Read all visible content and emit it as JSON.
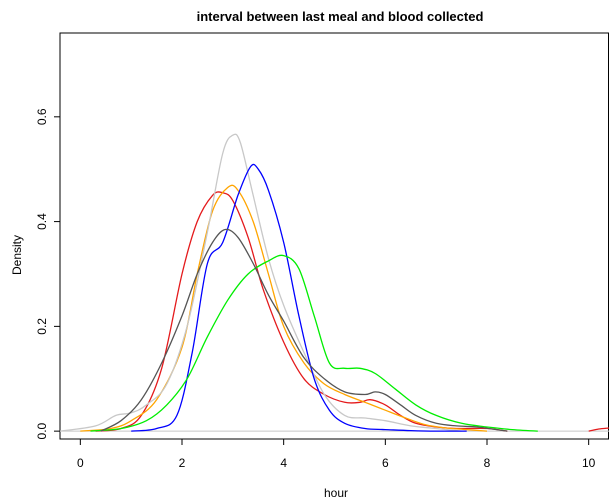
{
  "chart_data": {
    "type": "line",
    "title": "interval between last meal and blood collected",
    "xlabel": "hour",
    "ylabel": "Density",
    "xlim": [
      -0.4,
      10.4
    ],
    "ylim": [
      -0.015,
      0.76
    ],
    "x_ticks": [
      0,
      2,
      4,
      6,
      8,
      10
    ],
    "x_tick_labels": [
      "0",
      "2",
      "4",
      "6",
      "8",
      "10"
    ],
    "y_ticks": [
      0.0,
      0.2,
      0.4,
      0.6
    ],
    "y_tick_labels": [
      "0.0",
      "0.2",
      "0.4",
      "0.6"
    ],
    "grid": false,
    "legend": "none",
    "baseline": 0,
    "baseline_color": "#c8c8c8",
    "series": [
      {
        "color": "#e41a1c",
        "x": [
          0.3,
          0.8,
          1.2,
          1.6,
          2.0,
          2.3,
          2.6,
          2.8,
          3.0,
          3.3,
          3.6,
          4.0,
          4.4,
          4.8,
          5.2,
          5.5,
          5.7,
          6.0,
          6.3,
          6.6,
          7.0,
          7.4,
          8.0,
          8.4
        ],
        "y": [
          0.0,
          0.005,
          0.03,
          0.12,
          0.3,
          0.4,
          0.45,
          0.455,
          0.44,
          0.37,
          0.27,
          0.17,
          0.1,
          0.07,
          0.055,
          0.055,
          0.06,
          0.05,
          0.03,
          0.015,
          0.008,
          0.005,
          0.005,
          0.0
        ]
      },
      {
        "color": "#ffa500",
        "x": [
          0.0,
          0.6,
          1.0,
          1.5,
          2.0,
          2.3,
          2.6,
          2.9,
          3.1,
          3.4,
          3.7,
          4.0,
          4.4,
          4.8,
          5.2,
          5.6,
          6.0,
          6.4,
          6.8,
          7.2,
          7.6,
          8.0
        ],
        "y": [
          0.0,
          0.005,
          0.02,
          0.06,
          0.16,
          0.3,
          0.42,
          0.465,
          0.46,
          0.4,
          0.3,
          0.2,
          0.13,
          0.09,
          0.07,
          0.055,
          0.04,
          0.025,
          0.012,
          0.006,
          0.003,
          0.0
        ]
      },
      {
        "color": "#c8c8c8",
        "x": [
          -0.4,
          0.3,
          0.7,
          1.0,
          1.3,
          1.7,
          2.1,
          2.5,
          2.8,
          3.0,
          3.15,
          3.4,
          3.7,
          4.0,
          4.4,
          4.8,
          5.2,
          5.6,
          6.0,
          6.5,
          7.0,
          7.5
        ],
        "y": [
          0.0,
          0.01,
          0.03,
          0.035,
          0.05,
          0.09,
          0.2,
          0.38,
          0.53,
          0.565,
          0.55,
          0.45,
          0.33,
          0.24,
          0.15,
          0.07,
          0.03,
          0.025,
          0.02,
          0.01,
          0.005,
          0.0
        ]
      },
      {
        "color": "#0000ff",
        "x": [
          1.0,
          1.5,
          1.9,
          2.2,
          2.5,
          2.8,
          3.1,
          3.35,
          3.5,
          3.7,
          4.0,
          4.3,
          4.6,
          4.9,
          5.2,
          5.6,
          6.0,
          6.5,
          7.0,
          7.6
        ],
        "y": [
          0.0,
          0.005,
          0.03,
          0.15,
          0.32,
          0.36,
          0.45,
          0.505,
          0.5,
          0.46,
          0.36,
          0.22,
          0.1,
          0.04,
          0.015,
          0.005,
          0.003,
          0.001,
          0.0,
          0.0
        ]
      },
      {
        "color": "#00ee00",
        "x": [
          0.2,
          0.8,
          1.3,
          1.7,
          2.1,
          2.5,
          2.9,
          3.3,
          3.7,
          4.0,
          4.3,
          4.6,
          4.9,
          5.2,
          5.5,
          5.8,
          6.2,
          6.6,
          7.0,
          7.5,
          8.0,
          8.5,
          9.0
        ],
        "y": [
          0.0,
          0.005,
          0.02,
          0.05,
          0.1,
          0.18,
          0.25,
          0.3,
          0.325,
          0.335,
          0.31,
          0.22,
          0.13,
          0.12,
          0.12,
          0.11,
          0.08,
          0.05,
          0.03,
          0.015,
          0.008,
          0.003,
          0.0
        ]
      },
      {
        "color": "#555555",
        "x": [
          0.4,
          0.8,
          1.2,
          1.6,
          2.0,
          2.3,
          2.6,
          2.85,
          3.1,
          3.4,
          3.7,
          4.0,
          4.4,
          4.8,
          5.2,
          5.6,
          5.8,
          6.0,
          6.3,
          6.6,
          7.0,
          7.4,
          7.8,
          8.1,
          8.4
        ],
        "y": [
          0.0,
          0.02,
          0.06,
          0.13,
          0.22,
          0.3,
          0.36,
          0.385,
          0.37,
          0.32,
          0.26,
          0.21,
          0.14,
          0.1,
          0.075,
          0.07,
          0.075,
          0.07,
          0.05,
          0.03,
          0.015,
          0.01,
          0.008,
          0.004,
          0.0
        ]
      },
      {
        "color": "#e41a1c",
        "x": [
          10.0,
          10.2,
          10.4
        ],
        "y": [
          0.0,
          0.004,
          0.006
        ]
      }
    ]
  }
}
